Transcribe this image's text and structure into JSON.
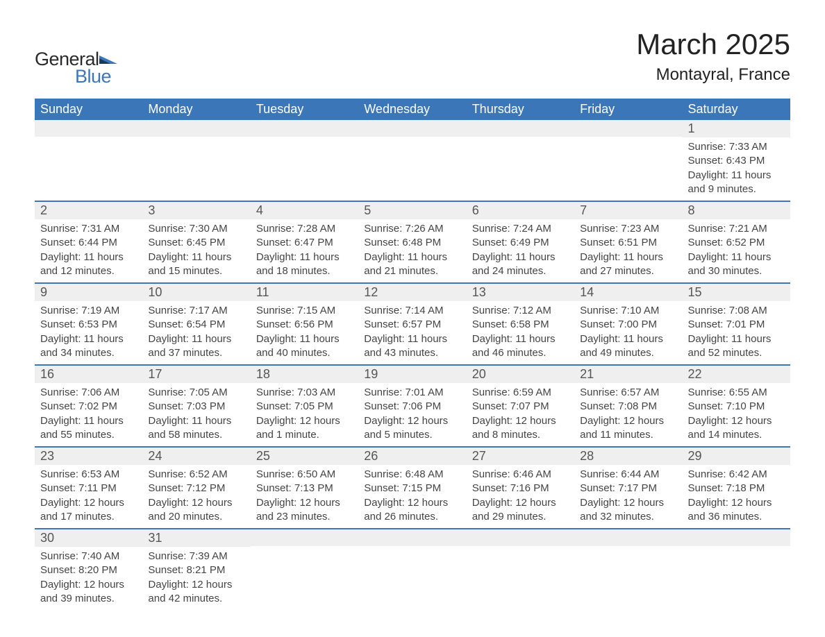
{
  "logo": {
    "text1": "General",
    "text2": "Blue",
    "text_color_dark": "#2a2a2a",
    "text_color_blue": "#3b77b8",
    "icon_color_dark": "#1a3a5a",
    "icon_color_light": "#3b77b8"
  },
  "header": {
    "month_title": "March 2025",
    "location": "Montayral, France"
  },
  "styling": {
    "header_bg": "#3b77b8",
    "header_text": "#ffffff",
    "daynum_bg": "#efefef",
    "row_border": "#3b77b8",
    "body_text": "#444444",
    "title_fontsize": 42,
    "location_fontsize": 24,
    "weekday_fontsize": 18,
    "daynum_fontsize": 18,
    "body_fontsize": 15
  },
  "weekdays": [
    "Sunday",
    "Monday",
    "Tuesday",
    "Wednesday",
    "Thursday",
    "Friday",
    "Saturday"
  ],
  "weeks": [
    [
      {
        "empty": true
      },
      {
        "empty": true
      },
      {
        "empty": true
      },
      {
        "empty": true
      },
      {
        "empty": true
      },
      {
        "empty": true
      },
      {
        "day": "1",
        "sunrise": "Sunrise: 7:33 AM",
        "sunset": "Sunset: 6:43 PM",
        "daylight1": "Daylight: 11 hours",
        "daylight2": "and 9 minutes."
      }
    ],
    [
      {
        "day": "2",
        "sunrise": "Sunrise: 7:31 AM",
        "sunset": "Sunset: 6:44 PM",
        "daylight1": "Daylight: 11 hours",
        "daylight2": "and 12 minutes."
      },
      {
        "day": "3",
        "sunrise": "Sunrise: 7:30 AM",
        "sunset": "Sunset: 6:45 PM",
        "daylight1": "Daylight: 11 hours",
        "daylight2": "and 15 minutes."
      },
      {
        "day": "4",
        "sunrise": "Sunrise: 7:28 AM",
        "sunset": "Sunset: 6:47 PM",
        "daylight1": "Daylight: 11 hours",
        "daylight2": "and 18 minutes."
      },
      {
        "day": "5",
        "sunrise": "Sunrise: 7:26 AM",
        "sunset": "Sunset: 6:48 PM",
        "daylight1": "Daylight: 11 hours",
        "daylight2": "and 21 minutes."
      },
      {
        "day": "6",
        "sunrise": "Sunrise: 7:24 AM",
        "sunset": "Sunset: 6:49 PM",
        "daylight1": "Daylight: 11 hours",
        "daylight2": "and 24 minutes."
      },
      {
        "day": "7",
        "sunrise": "Sunrise: 7:23 AM",
        "sunset": "Sunset: 6:51 PM",
        "daylight1": "Daylight: 11 hours",
        "daylight2": "and 27 minutes."
      },
      {
        "day": "8",
        "sunrise": "Sunrise: 7:21 AM",
        "sunset": "Sunset: 6:52 PM",
        "daylight1": "Daylight: 11 hours",
        "daylight2": "and 30 minutes."
      }
    ],
    [
      {
        "day": "9",
        "sunrise": "Sunrise: 7:19 AM",
        "sunset": "Sunset: 6:53 PM",
        "daylight1": "Daylight: 11 hours",
        "daylight2": "and 34 minutes."
      },
      {
        "day": "10",
        "sunrise": "Sunrise: 7:17 AM",
        "sunset": "Sunset: 6:54 PM",
        "daylight1": "Daylight: 11 hours",
        "daylight2": "and 37 minutes."
      },
      {
        "day": "11",
        "sunrise": "Sunrise: 7:15 AM",
        "sunset": "Sunset: 6:56 PM",
        "daylight1": "Daylight: 11 hours",
        "daylight2": "and 40 minutes."
      },
      {
        "day": "12",
        "sunrise": "Sunrise: 7:14 AM",
        "sunset": "Sunset: 6:57 PM",
        "daylight1": "Daylight: 11 hours",
        "daylight2": "and 43 minutes."
      },
      {
        "day": "13",
        "sunrise": "Sunrise: 7:12 AM",
        "sunset": "Sunset: 6:58 PM",
        "daylight1": "Daylight: 11 hours",
        "daylight2": "and 46 minutes."
      },
      {
        "day": "14",
        "sunrise": "Sunrise: 7:10 AM",
        "sunset": "Sunset: 7:00 PM",
        "daylight1": "Daylight: 11 hours",
        "daylight2": "and 49 minutes."
      },
      {
        "day": "15",
        "sunrise": "Sunrise: 7:08 AM",
        "sunset": "Sunset: 7:01 PM",
        "daylight1": "Daylight: 11 hours",
        "daylight2": "and 52 minutes."
      }
    ],
    [
      {
        "day": "16",
        "sunrise": "Sunrise: 7:06 AM",
        "sunset": "Sunset: 7:02 PM",
        "daylight1": "Daylight: 11 hours",
        "daylight2": "and 55 minutes."
      },
      {
        "day": "17",
        "sunrise": "Sunrise: 7:05 AM",
        "sunset": "Sunset: 7:03 PM",
        "daylight1": "Daylight: 11 hours",
        "daylight2": "and 58 minutes."
      },
      {
        "day": "18",
        "sunrise": "Sunrise: 7:03 AM",
        "sunset": "Sunset: 7:05 PM",
        "daylight1": "Daylight: 12 hours",
        "daylight2": "and 1 minute."
      },
      {
        "day": "19",
        "sunrise": "Sunrise: 7:01 AM",
        "sunset": "Sunset: 7:06 PM",
        "daylight1": "Daylight: 12 hours",
        "daylight2": "and 5 minutes."
      },
      {
        "day": "20",
        "sunrise": "Sunrise: 6:59 AM",
        "sunset": "Sunset: 7:07 PM",
        "daylight1": "Daylight: 12 hours",
        "daylight2": "and 8 minutes."
      },
      {
        "day": "21",
        "sunrise": "Sunrise: 6:57 AM",
        "sunset": "Sunset: 7:08 PM",
        "daylight1": "Daylight: 12 hours",
        "daylight2": "and 11 minutes."
      },
      {
        "day": "22",
        "sunrise": "Sunrise: 6:55 AM",
        "sunset": "Sunset: 7:10 PM",
        "daylight1": "Daylight: 12 hours",
        "daylight2": "and 14 minutes."
      }
    ],
    [
      {
        "day": "23",
        "sunrise": "Sunrise: 6:53 AM",
        "sunset": "Sunset: 7:11 PM",
        "daylight1": "Daylight: 12 hours",
        "daylight2": "and 17 minutes."
      },
      {
        "day": "24",
        "sunrise": "Sunrise: 6:52 AM",
        "sunset": "Sunset: 7:12 PM",
        "daylight1": "Daylight: 12 hours",
        "daylight2": "and 20 minutes."
      },
      {
        "day": "25",
        "sunrise": "Sunrise: 6:50 AM",
        "sunset": "Sunset: 7:13 PM",
        "daylight1": "Daylight: 12 hours",
        "daylight2": "and 23 minutes."
      },
      {
        "day": "26",
        "sunrise": "Sunrise: 6:48 AM",
        "sunset": "Sunset: 7:15 PM",
        "daylight1": "Daylight: 12 hours",
        "daylight2": "and 26 minutes."
      },
      {
        "day": "27",
        "sunrise": "Sunrise: 6:46 AM",
        "sunset": "Sunset: 7:16 PM",
        "daylight1": "Daylight: 12 hours",
        "daylight2": "and 29 minutes."
      },
      {
        "day": "28",
        "sunrise": "Sunrise: 6:44 AM",
        "sunset": "Sunset: 7:17 PM",
        "daylight1": "Daylight: 12 hours",
        "daylight2": "and 32 minutes."
      },
      {
        "day": "29",
        "sunrise": "Sunrise: 6:42 AM",
        "sunset": "Sunset: 7:18 PM",
        "daylight1": "Daylight: 12 hours",
        "daylight2": "and 36 minutes."
      }
    ],
    [
      {
        "day": "30",
        "sunrise": "Sunrise: 7:40 AM",
        "sunset": "Sunset: 8:20 PM",
        "daylight1": "Daylight: 12 hours",
        "daylight2": "and 39 minutes."
      },
      {
        "day": "31",
        "sunrise": "Sunrise: 7:39 AM",
        "sunset": "Sunset: 8:21 PM",
        "daylight1": "Daylight: 12 hours",
        "daylight2": "and 42 minutes."
      },
      {
        "empty": true
      },
      {
        "empty": true
      },
      {
        "empty": true
      },
      {
        "empty": true
      },
      {
        "empty": true
      }
    ]
  ]
}
